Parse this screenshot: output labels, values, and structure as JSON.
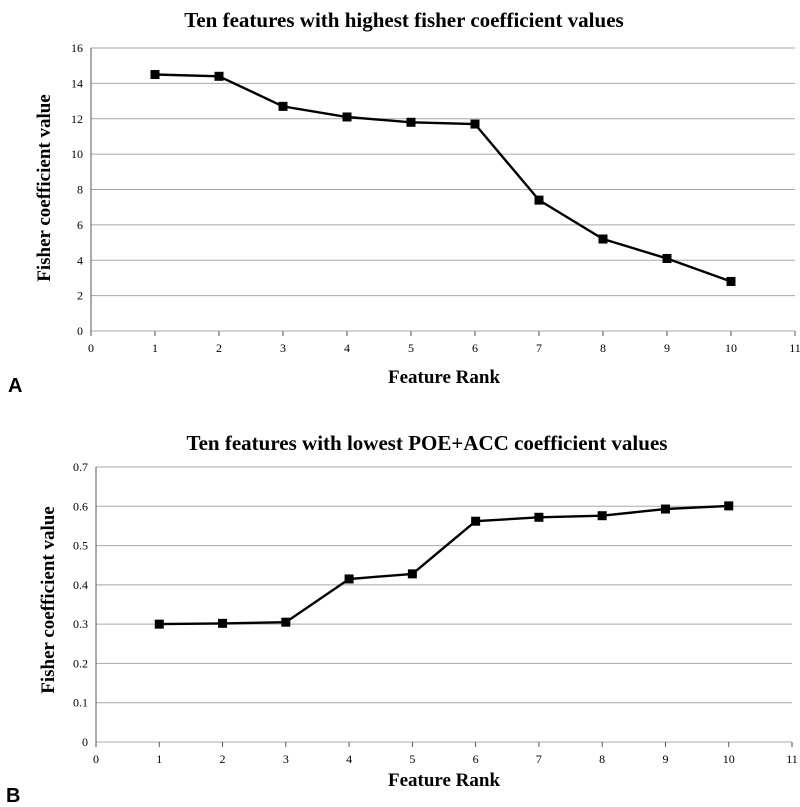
{
  "chart_data": [
    {
      "type": "line",
      "panel": "A",
      "title": "Ten features with highest fisher coefficient values",
      "xlabel": "Feature Rank",
      "ylabel": "Fisher coefficient value",
      "xlim": [
        0,
        11
      ],
      "ylim": [
        0,
        16
      ],
      "xticks": [
        0,
        1,
        2,
        3,
        4,
        5,
        6,
        7,
        8,
        9,
        10,
        11
      ],
      "yticks": [
        0,
        2,
        4,
        6,
        8,
        10,
        12,
        14,
        16
      ],
      "grid": true,
      "series": [
        {
          "x": [
            1,
            2,
            3,
            4,
            5,
            6,
            7,
            8,
            9,
            10
          ],
          "values": [
            14.5,
            14.4,
            12.7,
            12.1,
            11.8,
            11.7,
            7.4,
            5.2,
            4.1,
            2.8
          ]
        }
      ]
    },
    {
      "type": "line",
      "panel": "B",
      "title": "Ten features with lowest POE+ACC coefficient values",
      "xlabel": "Feature Rank",
      "ylabel": "Fisher coefficient value",
      "xlim": [
        0,
        11
      ],
      "ylim": [
        0,
        0.7
      ],
      "xticks": [
        0,
        1,
        2,
        3,
        4,
        5,
        6,
        7,
        8,
        9,
        10,
        11
      ],
      "yticks": [
        0,
        0.1,
        0.2,
        0.3,
        0.4,
        0.5,
        0.6,
        0.7
      ],
      "grid": true,
      "series": [
        {
          "x": [
            1,
            2,
            3,
            4,
            5,
            6,
            7,
            8,
            9,
            10
          ],
          "values": [
            0.3,
            0.302,
            0.305,
            0.415,
            0.428,
            0.562,
            0.572,
            0.576,
            0.593,
            0.601
          ]
        }
      ]
    }
  ]
}
